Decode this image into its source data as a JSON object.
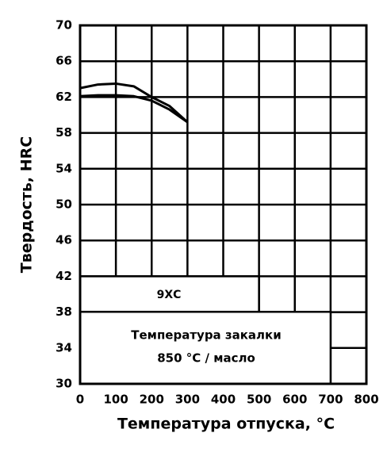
{
  "chart_data": {
    "type": "line",
    "x_label": "Температура отпуска, °С",
    "y_label": "Твердость, HRC",
    "x": [
      0,
      50,
      100,
      150,
      200,
      250,
      300
    ],
    "series": [
      {
        "values": [
          63.0,
          63.4,
          63.5,
          63.2,
          62.0,
          61.0,
          59.2
        ],
        "color": "#000000"
      },
      {
        "values": [
          62.1,
          62.2,
          62.2,
          62.1,
          61.6,
          60.6,
          59.2
        ],
        "color": "#000000"
      }
    ],
    "xlim": [
      0,
      800
    ],
    "xticks": [
      0,
      100,
      200,
      300,
      400,
      500,
      600,
      700,
      800
    ],
    "ylim": [
      30,
      70
    ],
    "yticks": [
      30,
      34,
      38,
      42,
      46,
      50,
      54,
      58,
      62,
      66,
      70
    ],
    "grid": true,
    "annotations": {
      "steel": "9ХС",
      "quench_line1": "Температура закалки",
      "quench_line2": "850 °С / масло"
    }
  }
}
